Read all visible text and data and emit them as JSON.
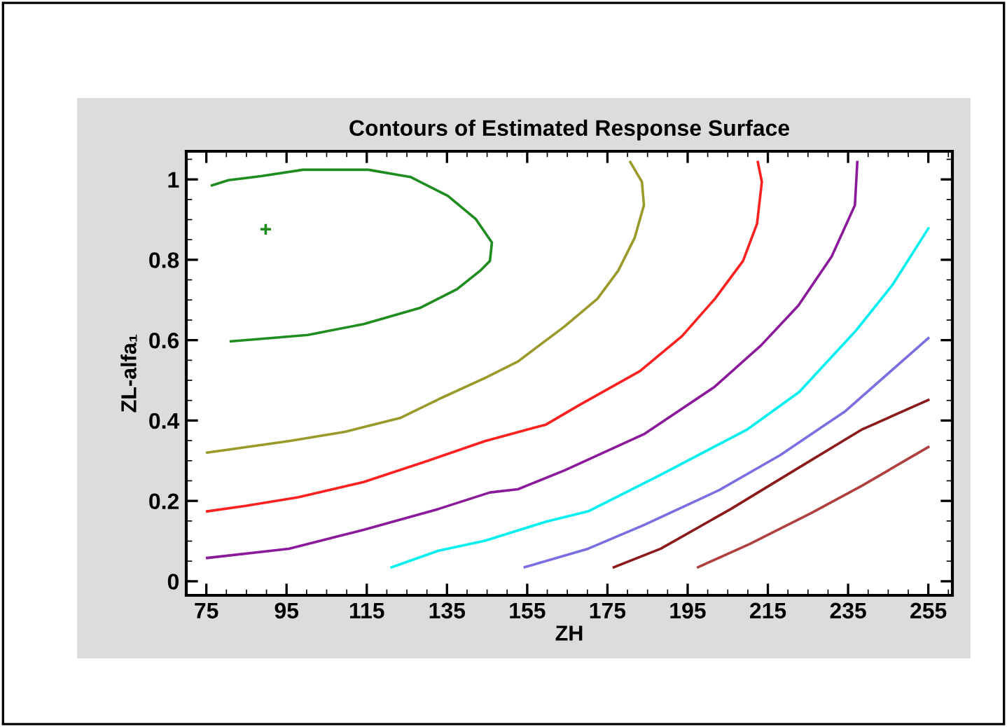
{
  "chart_data": {
    "type": "line",
    "title": "Contours of Estimated Response Surface",
    "xlabel": "ZH",
    "ylabel": "ZL-alfa₁",
    "xlim": [
      70,
      261
    ],
    "ylim": [
      -0.035,
      1.07
    ],
    "xticks": [
      75,
      95,
      115,
      135,
      155,
      175,
      195,
      215,
      235,
      255
    ],
    "yticks": [
      0,
      0.2,
      0.4,
      0.6,
      0.8,
      1
    ],
    "grid": false,
    "line_style": "solid",
    "series": [
      {
        "color": "#1e8c1e",
        "x": [
          76.4,
          80.5,
          88.6,
          99.1,
          115.4,
          125.9,
          135.2,
          142.2,
          146.2,
          145.7,
          143.3,
          137.5,
          128.2,
          114.2,
          100.3,
          90.9,
          81.1
        ],
        "values": [
          0.985,
          0.998,
          1.008,
          1.024,
          1.024,
          1.006,
          0.959,
          0.901,
          0.843,
          0.797,
          0.773,
          0.727,
          0.68,
          0.64,
          0.613,
          0.605,
          0.597
        ]
      },
      {
        "color": "#9a9a2a",
        "x": [
          75.2,
          85.1,
          95.6,
          109.6,
          123.5,
          132.9,
          144.5,
          152.7,
          164.3,
          172.5,
          177.7,
          181.8,
          184.1,
          183.6,
          180.7
        ],
        "values": [
          0.32,
          0.334,
          0.349,
          0.372,
          0.407,
          0.453,
          0.506,
          0.547,
          0.634,
          0.703,
          0.773,
          0.855,
          0.936,
          0.994,
          1.043
        ]
      },
      {
        "color": "#ff2020",
        "x": [
          75.2,
          85.1,
          97.9,
          114.2,
          129.4,
          144.5,
          159.7,
          167.9,
          183.1,
          193.6,
          201.8,
          208.8,
          212.3,
          213.5,
          212.5
        ],
        "values": [
          0.174,
          0.188,
          0.209,
          0.247,
          0.297,
          0.349,
          0.39,
          0.438,
          0.523,
          0.61,
          0.703,
          0.797,
          0.89,
          0.994,
          1.043
        ]
      },
      {
        "color": "#8b1a9b",
        "x": [
          75.2,
          95.6,
          114.2,
          132.9,
          145.7,
          152.7,
          164.3,
          184.1,
          201.6,
          213.3,
          222.6,
          230.9,
          236.7,
          237.3
        ],
        "values": [
          0.058,
          0.081,
          0.128,
          0.18,
          0.221,
          0.229,
          0.276,
          0.366,
          0.483,
          0.587,
          0.686,
          0.808,
          0.936,
          1.043
        ]
      },
      {
        "color": "#00f0f0",
        "x": [
          121.2,
          132.9,
          144.5,
          159.6,
          170.2,
          187.7,
          209.9,
          222.8,
          236.8,
          246.1,
          255.0
        ],
        "values": [
          0.035,
          0.076,
          0.101,
          0.148,
          0.174,
          0.262,
          0.378,
          0.471,
          0.622,
          0.738,
          0.878
        ]
      },
      {
        "color": "#7b6ee0",
        "x": [
          154.4,
          170.2,
          184.1,
          202.9,
          218.1,
          234.4,
          255.0
        ],
        "values": [
          0.035,
          0.081,
          0.14,
          0.227,
          0.314,
          0.424,
          0.605
        ]
      },
      {
        "color": "#8b1a1a",
        "x": [
          176.6,
          188.3,
          205.8,
          222.1,
          238.5,
          255.0
        ],
        "values": [
          0.035,
          0.081,
          0.18,
          0.279,
          0.378,
          0.451
        ]
      },
      {
        "color": "#b04040",
        "x": [
          197.6,
          210.5,
          225.7,
          238.5,
          255.0
        ],
        "values": [
          0.035,
          0.093,
          0.169,
          0.238,
          0.334
        ]
      },
      {
        "type": "scatter",
        "marker": "cross",
        "color": "#1e8c1e",
        "x": [
          89.8
        ],
        "values": [
          0.876
        ]
      }
    ]
  }
}
